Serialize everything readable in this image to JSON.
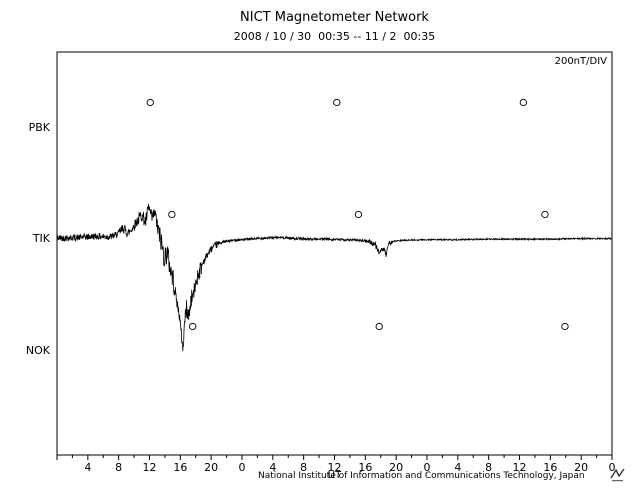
{
  "footer": {
    "credit": "National Institute of Information and Communications Technology, Japan"
  },
  "chart_data": {
    "type": "line",
    "title": "NICT Magnetometer Network",
    "subtitle": "2008 / 10 / 30  00:35 -- 11 / 2  00:35",
    "scale_label": "200nT/DIV",
    "xlabel": "UT",
    "x_range_hours": [
      0,
      72
    ],
    "x_tick_interval_hours": 4,
    "x_minor_tick_interval_hours": 2,
    "x_tick_labels": [
      "4",
      "8",
      "12",
      "16",
      "20",
      "0",
      "4",
      "8",
      "12",
      "16",
      "20",
      "0",
      "4",
      "8",
      "12",
      "16",
      "20",
      "0"
    ],
    "y_units": "nT",
    "nT_per_division": 200,
    "grid": false,
    "stations": [
      {
        "name": "PBK",
        "baseline_nT": 200,
        "has_data": false
      },
      {
        "name": "TIK",
        "baseline_nT": 0,
        "has_data": true
      },
      {
        "name": "NOK",
        "baseline_nT": -200,
        "has_data": false
      }
    ],
    "data_gap_markers": [
      {
        "station": "PBK",
        "hour": 12.1,
        "offset_nT": 42
      },
      {
        "station": "PBK",
        "hour": 36.3,
        "offset_nT": 42
      },
      {
        "station": "PBK",
        "hour": 60.5,
        "offset_nT": 42
      },
      {
        "station": "TIK",
        "hour": 14.9,
        "offset_nT": 42
      },
      {
        "station": "TIK",
        "hour": 39.1,
        "offset_nT": 42
      },
      {
        "station": "TIK",
        "hour": 63.3,
        "offset_nT": 42
      },
      {
        "station": "NOK",
        "hour": 17.6,
        "offset_nT": 42
      },
      {
        "station": "NOK",
        "hour": 41.8,
        "offset_nT": 42
      },
      {
        "station": "NOK",
        "hour": 65.9,
        "offset_nT": 42
      }
    ],
    "series": [
      {
        "name": "TIK magnetometer trace",
        "station": "TIK",
        "keypoints": [
          [
            0,
            0
          ],
          [
            3,
            1
          ],
          [
            5,
            3
          ],
          [
            7,
            2
          ],
          [
            8,
            8
          ],
          [
            8.6,
            18
          ],
          [
            9.2,
            8
          ],
          [
            9.8,
            18
          ],
          [
            10.4,
            30
          ],
          [
            11,
            42
          ],
          [
            11.5,
            28
          ],
          [
            11.9,
            55
          ],
          [
            12.3,
            35
          ],
          [
            12.7,
            45
          ],
          [
            13.1,
            15
          ],
          [
            13.5,
            -5
          ],
          [
            13.9,
            -35
          ],
          [
            14.3,
            -25
          ],
          [
            14.7,
            -55
          ],
          [
            15.1,
            -75
          ],
          [
            15.5,
            -110
          ],
          [
            15.9,
            -140
          ],
          [
            16.15,
            -175
          ],
          [
            16.35,
            -200
          ],
          [
            16.55,
            -150
          ],
          [
            16.8,
            -125
          ],
          [
            17.1,
            -140
          ],
          [
            17.4,
            -110
          ],
          [
            17.8,
            -95
          ],
          [
            18.2,
            -70
          ],
          [
            18.6,
            -55
          ],
          [
            19,
            -42
          ],
          [
            19.5,
            -30
          ],
          [
            20,
            -20
          ],
          [
            20.7,
            -12
          ],
          [
            21.5,
            -7
          ],
          [
            23,
            -4
          ],
          [
            25,
            -2
          ],
          [
            27,
            0
          ],
          [
            29,
            1
          ],
          [
            31,
            -1
          ],
          [
            33,
            -2
          ],
          [
            35,
            -2
          ],
          [
            37,
            -3
          ],
          [
            39,
            -4
          ],
          [
            40.5,
            -6
          ],
          [
            41.3,
            -12
          ],
          [
            41.9,
            -28
          ],
          [
            42.3,
            -18
          ],
          [
            42.7,
            -30
          ],
          [
            43.1,
            -10
          ],
          [
            43.6,
            -6
          ],
          [
            45,
            -4
          ],
          [
            48,
            -3
          ],
          [
            52,
            -3
          ],
          [
            56,
            -2
          ],
          [
            60,
            -2
          ],
          [
            64,
            -2
          ],
          [
            68,
            -1
          ],
          [
            72,
            -1
          ]
        ],
        "noise_envelope": [
          {
            "from": 0,
            "to": 8,
            "amp": 6
          },
          {
            "from": 8,
            "to": 10.5,
            "amp": 9
          },
          {
            "from": 10.5,
            "to": 13,
            "amp": 12
          },
          {
            "from": 13,
            "to": 15.3,
            "amp": 20
          },
          {
            "from": 15.3,
            "to": 16.6,
            "amp": 10
          },
          {
            "from": 16.6,
            "to": 19,
            "amp": 15
          },
          {
            "from": 19,
            "to": 21,
            "amp": 6
          },
          {
            "from": 21,
            "to": 40,
            "amp": 2.2
          },
          {
            "from": 40,
            "to": 43.5,
            "amp": 5
          },
          {
            "from": 43.5,
            "to": 72.1,
            "amp": 1.2
          }
        ]
      }
    ]
  }
}
